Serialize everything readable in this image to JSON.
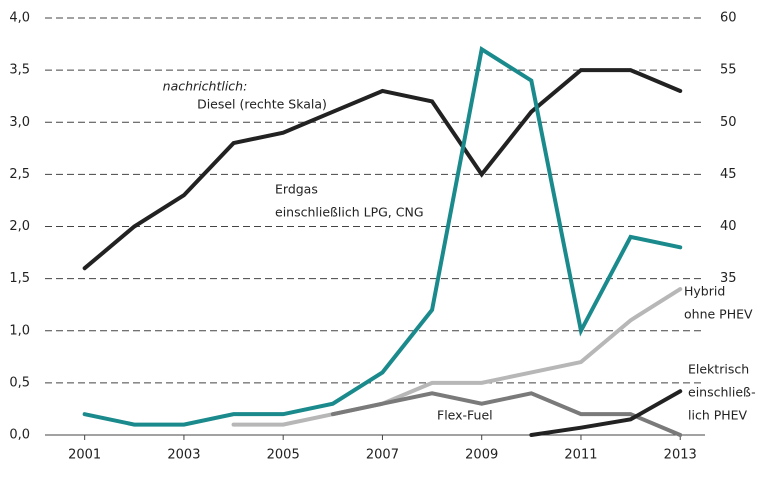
{
  "chart_data": {
    "type": "line",
    "x": [
      2001,
      2002,
      2003,
      2004,
      2005,
      2006,
      2007,
      2008,
      2009,
      2010,
      2011,
      2012,
      2013
    ],
    "xlim": [
      2000.1,
      2013.6
    ],
    "xticks": [
      2001,
      2003,
      2005,
      2007,
      2009,
      2011,
      2013
    ],
    "ylim": [
      0,
      4
    ],
    "yticks": [
      {
        "value": 0,
        "label": "0,0"
      },
      {
        "value": 0.5,
        "label": "0,5"
      },
      {
        "value": 1,
        "label": "1,0"
      },
      {
        "value": 1.5,
        "label": "1,5"
      },
      {
        "value": 2,
        "label": "2,0"
      },
      {
        "value": 2.5,
        "label": "2,5"
      },
      {
        "value": 3,
        "label": "3,0"
      },
      {
        "value": 3.5,
        "label": "3,5"
      },
      {
        "value": 4,
        "label": "4,0"
      }
    ],
    "y2lim": [
      20,
      60
    ],
    "y2ticks": [
      35,
      40,
      45,
      50,
      55,
      60
    ],
    "grid": true,
    "series": [
      {
        "name": "Diesel (rechte Skala)",
        "color": "#222222",
        "axis": "y2",
        "values": [
          36,
          40,
          43,
          48,
          49,
          51,
          53,
          52,
          45,
          51,
          55,
          55,
          53
        ]
      },
      {
        "name": "Erdgas einschließlich LPG, CNG",
        "color": "#1a8a8c",
        "values": [
          0.2,
          0.1,
          0.1,
          0.2,
          0.2,
          0.3,
          0.6,
          1.2,
          3.7,
          3.4,
          1.0,
          1.9,
          1.8
        ]
      },
      {
        "name": "Hybrid ohne PHEV",
        "color": "#b7b7b7",
        "values": [
          null,
          null,
          null,
          0.1,
          0.1,
          0.2,
          0.3,
          0.5,
          0.5,
          0.6,
          0.7,
          1.1,
          1.4
        ]
      },
      {
        "name": "Flex-Fuel",
        "color": "#7a7a7a",
        "values": [
          null,
          null,
          null,
          null,
          null,
          0.2,
          0.3,
          0.4,
          0.3,
          0.4,
          0.2,
          0.2,
          0.0
        ]
      },
      {
        "name": "Elektrisch einschließlich PHEV",
        "color": "#222222",
        "values": [
          null,
          null,
          null,
          null,
          null,
          null,
          null,
          null,
          null,
          0.0,
          0.07,
          0.15,
          0.42
        ]
      }
    ],
    "annotations": [
      {
        "lines": [
          "nachrichtlich:",
          "Diesel (rechte Skala)"
        ]
      },
      {
        "lines": [
          "Erdgas",
          "einschließlich LPG, CNG"
        ]
      },
      {
        "lines": [
          "Hybrid",
          "ohne PHEV"
        ]
      },
      {
        "lines": [
          "Flex-Fuel"
        ]
      },
      {
        "lines": [
          "Elektrisch",
          "einschließ-",
          "lich PHEV"
        ]
      }
    ]
  }
}
